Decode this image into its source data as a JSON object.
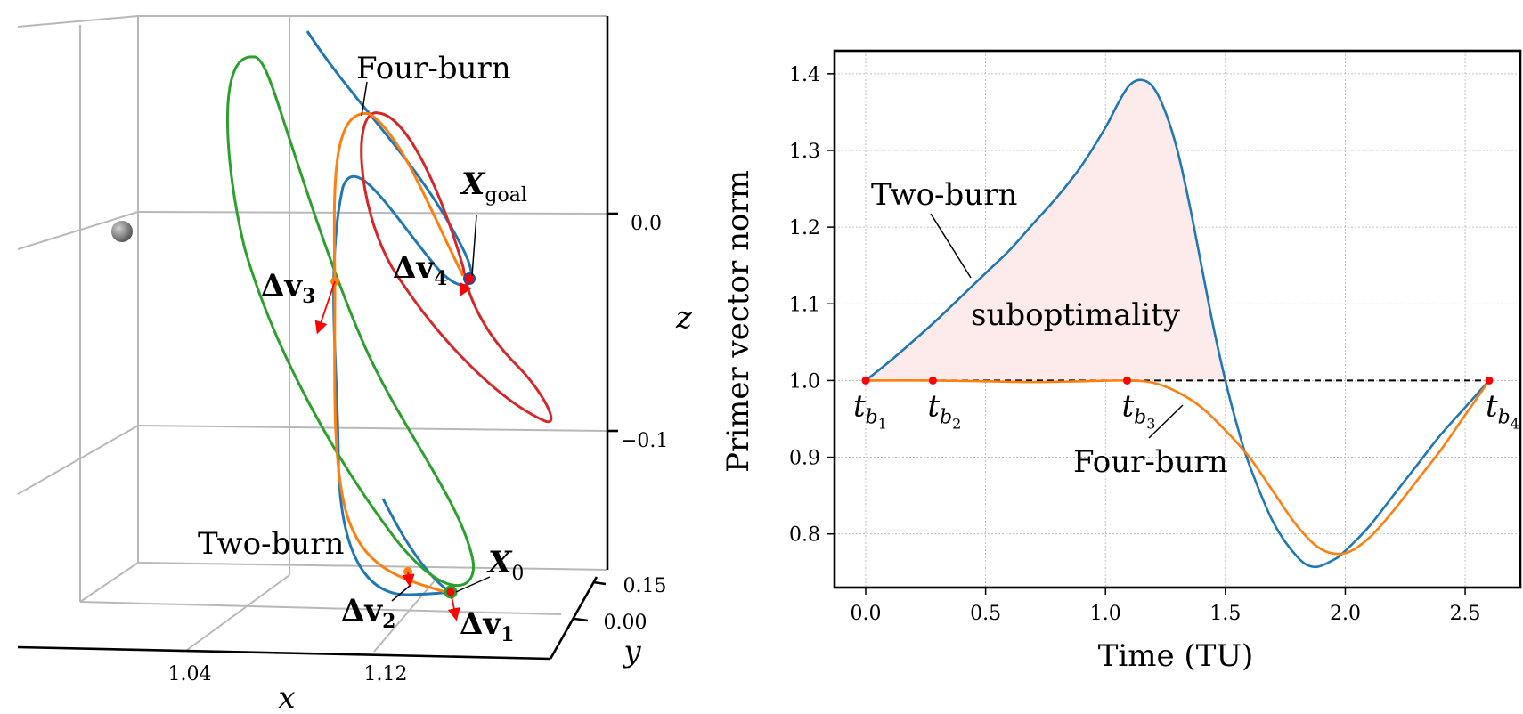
{
  "chart_data": [
    {
      "type": "line",
      "projection": "3d",
      "xlabel": "x",
      "ylabel": "y",
      "zlabel": "z",
      "x_ticks": [
        "1.04",
        "1.12"
      ],
      "y_ticks": [
        "0.15",
        "0.00"
      ],
      "z_ticks": [
        "0.0",
        "−0.1"
      ],
      "grid": true,
      "series": [
        {
          "name": "Two-burn",
          "color": "#1f77b4"
        },
        {
          "name": "Four-burn",
          "color": "#ff7f0e"
        },
        {
          "name": "",
          "color": "#2ca02c"
        },
        {
          "name": "",
          "color": "#d62728"
        }
      ],
      "annotations": [
        {
          "text": "Four-burn"
        },
        {
          "text": "Two-burn"
        },
        {
          "symbol": "X",
          "sub": "goal"
        },
        {
          "symbol": "X",
          "sub": "0"
        },
        {
          "symbol": "Δv",
          "sub": "1"
        },
        {
          "symbol": "Δv",
          "sub": "2"
        },
        {
          "symbol": "Δv",
          "sub": "3"
        },
        {
          "symbol": "Δv",
          "sub": "4"
        }
      ],
      "marker_colors": {
        "impulse": "#ff0000",
        "body": "#808080"
      }
    },
    {
      "type": "line",
      "xlabel": "Time (TU)",
      "ylabel": "Primer vector norm",
      "xlim": [
        -0.13,
        2.73
      ],
      "ylim": [
        0.73,
        1.43
      ],
      "x_ticks": [
        0.0,
        0.5,
        1.0,
        1.5,
        2.0,
        2.5
      ],
      "y_ticks": [
        0.8,
        0.9,
        1.0,
        1.1,
        1.2,
        1.3,
        1.4
      ],
      "tick_format": {
        "x": 1,
        "y": 1
      },
      "grid": true,
      "series": [
        {
          "name": "Two-burn",
          "color": "#1f77b4",
          "x": [
            0.0,
            0.1,
            0.2,
            0.3,
            0.4,
            0.5,
            0.6,
            0.7,
            0.8,
            0.9,
            1.0,
            1.05,
            1.1,
            1.15,
            1.2,
            1.25,
            1.3,
            1.35,
            1.4,
            1.45,
            1.5,
            1.55,
            1.6,
            1.7,
            1.8,
            1.87,
            1.95,
            2.0,
            2.1,
            2.2,
            2.3,
            2.4,
            2.5,
            2.6
          ],
          "y": [
            1.0,
            1.025,
            1.052,
            1.08,
            1.11,
            1.14,
            1.17,
            1.205,
            1.24,
            1.28,
            1.33,
            1.36,
            1.385,
            1.392,
            1.382,
            1.35,
            1.3,
            1.23,
            1.15,
            1.07,
            1.0,
            0.94,
            0.89,
            0.815,
            0.77,
            0.757,
            0.766,
            0.778,
            0.81,
            0.85,
            0.89,
            0.93,
            0.965,
            1.0
          ]
        },
        {
          "name": "Four-burn",
          "color": "#ff7f0e",
          "x": [
            0.0,
            0.28,
            0.5,
            0.7,
            0.9,
            1.09,
            1.2,
            1.3,
            1.4,
            1.5,
            1.6,
            1.7,
            1.8,
            1.9,
            2.0,
            2.1,
            2.2,
            2.3,
            2.4,
            2.5,
            2.6
          ],
          "y": [
            1.0,
            1.0,
            0.999,
            0.998,
            0.999,
            1.0,
            0.997,
            0.985,
            0.965,
            0.935,
            0.9,
            0.855,
            0.81,
            0.78,
            0.775,
            0.795,
            0.83,
            0.87,
            0.91,
            0.955,
            1.0
          ]
        }
      ],
      "reference_line": {
        "y": 1.0,
        "style": "dashed",
        "color": "#000000"
      },
      "burn_markers": [
        {
          "x": 0.0,
          "y": 1.0,
          "symbol": "t",
          "sub": "b",
          "subsub": "1"
        },
        {
          "x": 0.28,
          "y": 1.0,
          "symbol": "t",
          "sub": "b",
          "subsub": "2"
        },
        {
          "x": 1.09,
          "y": 1.0,
          "symbol": "t",
          "sub": "b",
          "subsub": "3"
        },
        {
          "x": 2.6,
          "y": 1.0,
          "symbol": "t",
          "sub": "b",
          "subsub": "4"
        }
      ],
      "marker_color": "#ff0000",
      "shaded_region": {
        "label": "suboptimality",
        "color": "#fdeaea"
      },
      "annotations": [
        {
          "text": "Two-burn"
        },
        {
          "text": "Four-burn"
        },
        {
          "text": "suboptimality"
        }
      ]
    }
  ]
}
